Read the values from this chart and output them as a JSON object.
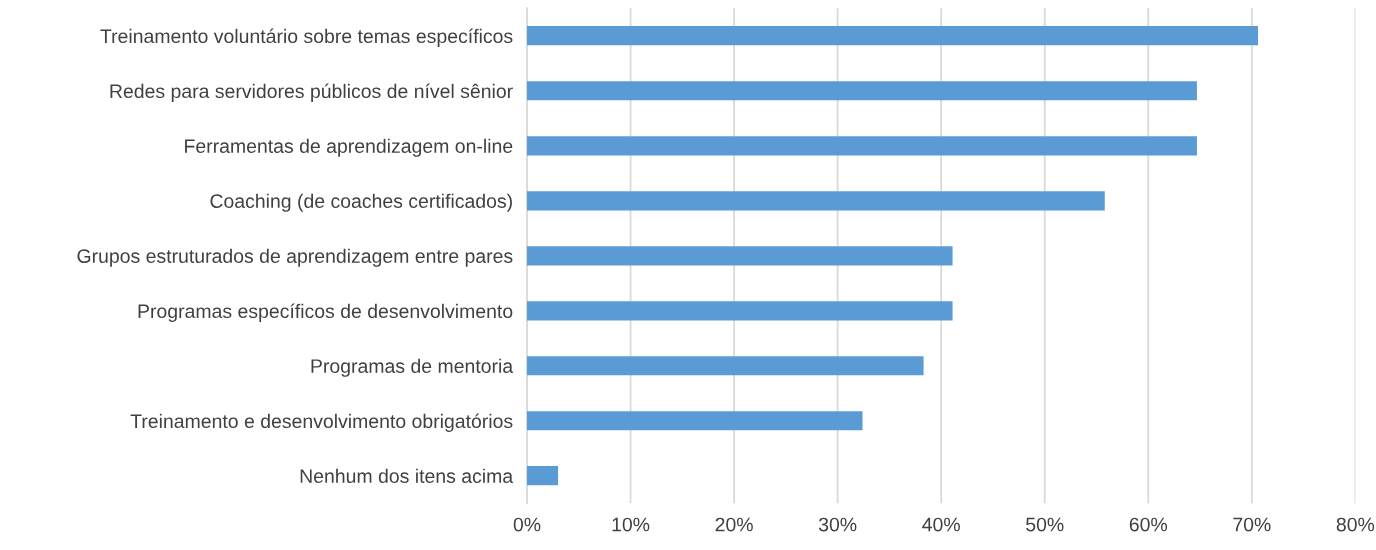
{
  "chart_data": {
    "type": "bar",
    "orientation": "horizontal",
    "categories": [
      "Treinamento voluntário sobre temas específicos",
      "Redes para servidores públicos de nível sênior",
      "Ferramentas de aprendizagem on-line",
      "Coaching (de coaches certificados)",
      "Grupos estruturados de aprendizagem entre pares",
      "Programas específicos de desenvolvimento",
      "Programas de mentoria",
      "Treinamento e desenvolvimento obrigatórios",
      "Nenhum dos itens acima"
    ],
    "values": [
      70.6,
      64.7,
      64.7,
      55.8,
      41.1,
      41.1,
      38.3,
      32.4,
      3.0
    ],
    "color": "#5b9bd5",
    "xlim": [
      0,
      80
    ],
    "xticks": [
      {
        "value": 0,
        "label": "0%"
      },
      {
        "value": 10,
        "label": "10%"
      },
      {
        "value": 20,
        "label": "20%"
      },
      {
        "value": 30,
        "label": "30%"
      },
      {
        "value": 40,
        "label": "40%"
      },
      {
        "value": 50,
        "label": "50%"
      },
      {
        "value": 60,
        "label": "60%"
      },
      {
        "value": 70,
        "label": "70%"
      },
      {
        "value": 80,
        "label": "80%"
      }
    ],
    "grid": "x",
    "legend": false
  }
}
